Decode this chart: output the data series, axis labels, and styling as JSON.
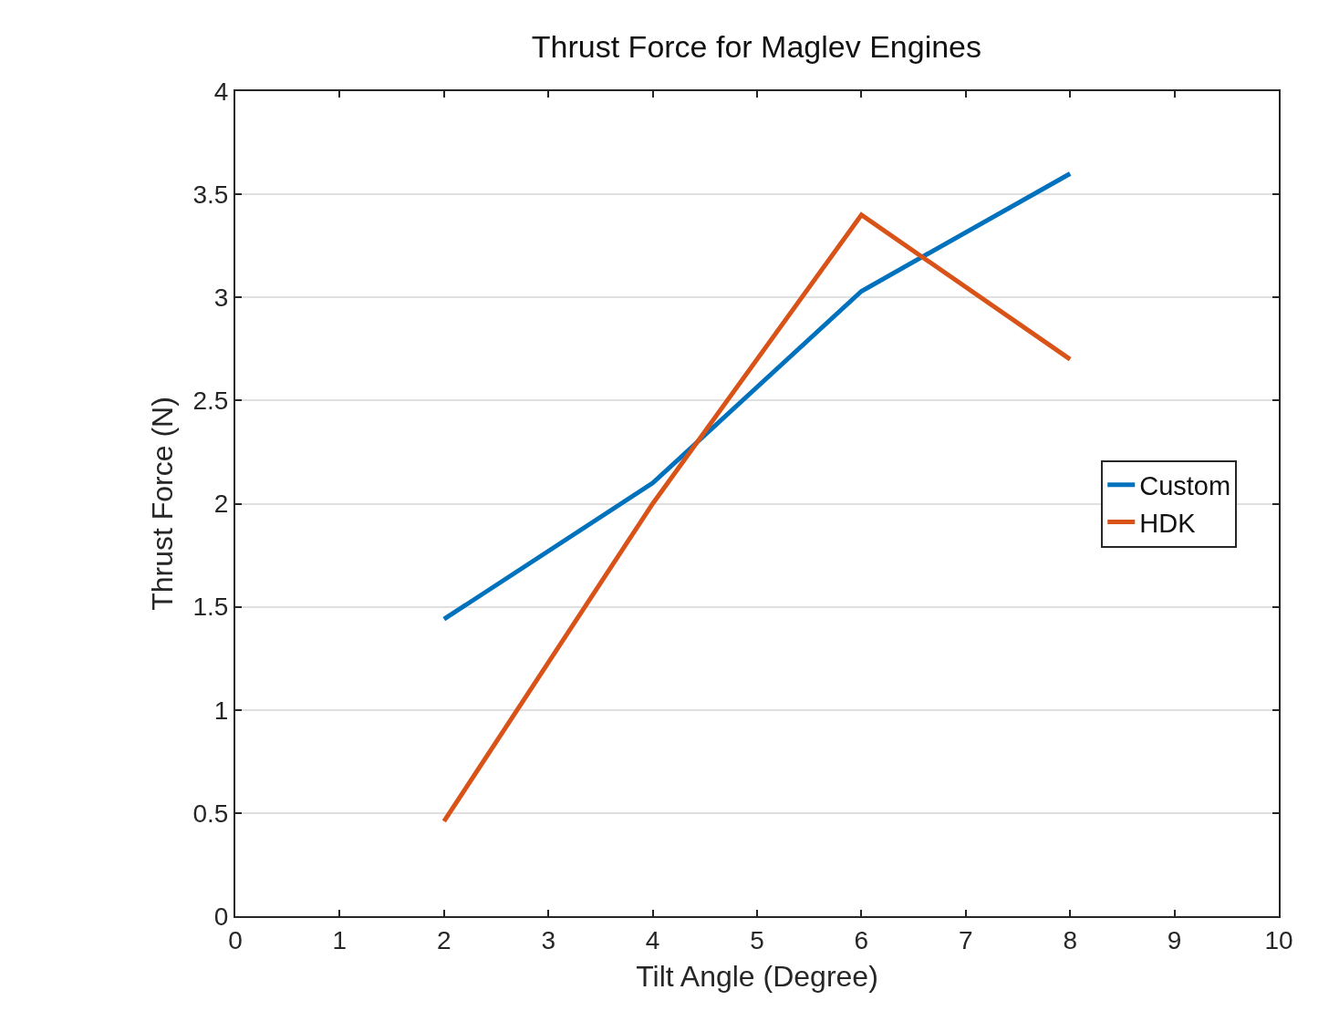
{
  "chart_data": {
    "type": "line",
    "title": "Thrust Force for Maglev Engines",
    "xlabel": "Tilt Angle (Degree)",
    "ylabel": "Thrust Force (N)",
    "x": [
      2,
      4,
      6,
      8
    ],
    "series": [
      {
        "name": "Custom",
        "color": "#0072bd",
        "values": [
          1.44,
          2.1,
          3.03,
          3.6
        ]
      },
      {
        "name": "HDK",
        "color": "#d95319",
        "values": [
          0.46,
          2.0,
          3.4,
          2.7
        ]
      }
    ],
    "xlim": [
      0,
      10
    ],
    "xticks": [
      0,
      1,
      2,
      3,
      4,
      5,
      6,
      7,
      8,
      9,
      10
    ],
    "ylim": [
      0,
      4
    ],
    "yticks": [
      0,
      0.5,
      1,
      1.5,
      2,
      2.5,
      3,
      3.5,
      4
    ],
    "grid": "y",
    "legend": "right",
    "marker": "none",
    "line_style": "solid"
  }
}
